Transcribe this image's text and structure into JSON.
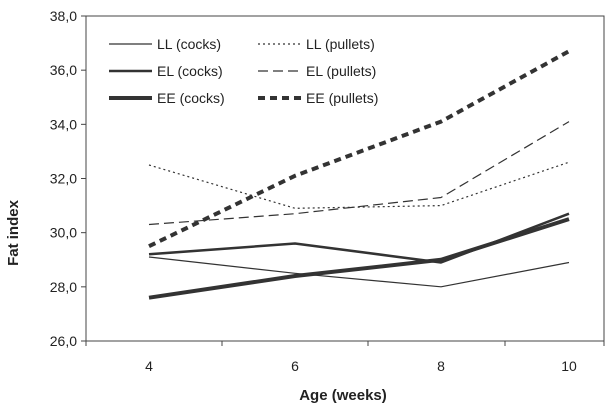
{
  "chart_data": {
    "type": "line",
    "title": "",
    "xlabel": "Age (weeks)",
    "ylabel": "Fat index",
    "x": [
      4,
      6,
      8,
      10
    ],
    "x_tick_labels": [
      "4",
      "6",
      "8",
      "10"
    ],
    "ylim": [
      26,
      38
    ],
    "y_ticks": [
      26,
      28,
      30,
      32,
      34,
      36,
      38
    ],
    "y_tick_labels": [
      "26,0",
      "28,0",
      "30,0",
      "32,0",
      "34,0",
      "36,0",
      "38,0"
    ],
    "grid": false,
    "legend_position": "top-left",
    "series": [
      {
        "name": "LL (cocks)",
        "values": [
          29.1,
          28.5,
          28.0,
          28.9
        ],
        "style": "solid",
        "weight": "thin",
        "color": "#333333"
      },
      {
        "name": "LL (pullets)",
        "values": [
          32.5,
          30.9,
          31.0,
          32.6
        ],
        "style": "dotted",
        "weight": "thin",
        "color": "#333333"
      },
      {
        "name": "EL (cocks)",
        "values": [
          29.2,
          29.6,
          28.9,
          30.7
        ],
        "style": "solid",
        "weight": "medium",
        "color": "#333333"
      },
      {
        "name": "EL (pullets)",
        "values": [
          30.3,
          30.7,
          31.3,
          34.1
        ],
        "style": "dashed",
        "weight": "thin",
        "color": "#333333"
      },
      {
        "name": "EE (cocks)",
        "values": [
          27.6,
          28.4,
          29.0,
          30.5
        ],
        "style": "solid",
        "weight": "thick",
        "color": "#333333"
      },
      {
        "name": "EE (pullets)",
        "values": [
          29.5,
          32.1,
          34.1,
          36.7
        ],
        "style": "dashed",
        "weight": "thick",
        "color": "#333333"
      }
    ]
  }
}
